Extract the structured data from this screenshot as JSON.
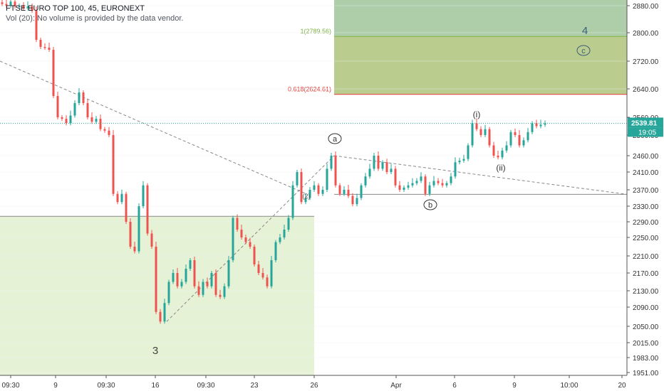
{
  "chart_data": {
    "type": "candlestick",
    "title": "FTSE EURO TOP 100, 45, EURONEXT",
    "subtitle": "Vol (20): No volume is provided by the data vendor.",
    "x_tick_labels": [
      "09:30",
      "9",
      "09:30",
      "16",
      "09:30",
      "23",
      "26",
      "Apr",
      "6",
      "9",
      "10:00",
      "20"
    ],
    "y_tick_labels": [
      "2880.00",
      "2800.00",
      "2720.00",
      "2640.00",
      "2560.00",
      "2500.00",
      "2460.00",
      "2410.00",
      "2370.00",
      "2330.00",
      "2290.00",
      "2250.00",
      "2210.00",
      "2170.00",
      "2130.00",
      "2090.00",
      "2050.00",
      "2015.00",
      "1983.00",
      "1951.00"
    ],
    "y_ticks": [
      2880,
      2800,
      2720,
      2640,
      2560,
      2500,
      2460,
      2410,
      2370,
      2330,
      2290,
      2250,
      2210,
      2170,
      2130,
      2090,
      2050,
      2015,
      1983,
      1951
    ],
    "ylim": [
      1940,
      2900
    ],
    "last_price": {
      "label": "2539.81",
      "value": 2539.81,
      "countdown": "19:05"
    },
    "fib_levels": [
      {
        "label": "1(2789.56)",
        "value": 2789.56,
        "color": "#7cb342"
      },
      {
        "label": "0.618(2624.61)",
        "value": 2624.61,
        "color": "#e53935"
      }
    ],
    "wave_labels": {
      "three": "3",
      "four": "4",
      "a": "a",
      "b": "b",
      "c": "c",
      "i": "(i)",
      "ii": "(ii)",
      "partial": "(2)"
    },
    "price_path": [
      [
        0,
        2890
      ],
      [
        6,
        2885
      ],
      [
        12,
        2880
      ],
      [
        18,
        2892
      ],
      [
        24,
        2878
      ],
      [
        30,
        2880
      ],
      [
        36,
        2872
      ],
      [
        42,
        2878
      ],
      [
        48,
        2865
      ],
      [
        54,
        2780
      ],
      [
        60,
        2760
      ],
      [
        66,
        2758
      ],
      [
        72,
        2752
      ],
      [
        78,
        2620
      ],
      [
        84,
        2560
      ],
      [
        90,
        2555
      ],
      [
        96,
        2540
      ],
      [
        102,
        2565
      ],
      [
        108,
        2600
      ],
      [
        114,
        2630
      ],
      [
        120,
        2600
      ],
      [
        126,
        2560
      ],
      [
        132,
        2545
      ],
      [
        138,
        2555
      ],
      [
        144,
        2520
      ],
      [
        150,
        2515
      ],
      [
        156,
        2500
      ],
      [
        162,
        2360
      ],
      [
        168,
        2340
      ],
      [
        174,
        2360
      ],
      [
        180,
        2290
      ],
      [
        186,
        2230
      ],
      [
        192,
        2220
      ],
      [
        198,
        2330
      ],
      [
        204,
        2380
      ],
      [
        210,
        2260
      ],
      [
        216,
        2230
      ],
      [
        222,
        2080
      ],
      [
        228,
        2060
      ],
      [
        234,
        2100
      ],
      [
        240,
        2150
      ],
      [
        246,
        2170
      ],
      [
        252,
        2140
      ],
      [
        258,
        2150
      ],
      [
        264,
        2180
      ],
      [
        270,
        2200
      ],
      [
        276,
        2140
      ],
      [
        282,
        2120
      ],
      [
        288,
        2150
      ],
      [
        294,
        2140
      ],
      [
        300,
        2170
      ],
      [
        306,
        2120
      ],
      [
        312,
        2115
      ],
      [
        318,
        2140
      ],
      [
        324,
        2200
      ],
      [
        330,
        2300
      ],
      [
        336,
        2270
      ],
      [
        342,
        2250
      ],
      [
        348,
        2240
      ],
      [
        354,
        2230
      ],
      [
        360,
        2190
      ],
      [
        366,
        2170
      ],
      [
        372,
        2160
      ],
      [
        378,
        2140
      ],
      [
        384,
        2200
      ],
      [
        390,
        2240
      ],
      [
        396,
        2250
      ],
      [
        402,
        2270
      ],
      [
        408,
        2300
      ],
      [
        414,
        2380
      ],
      [
        420,
        2410
      ],
      [
        426,
        2340
      ],
      [
        432,
        2350
      ],
      [
        438,
        2370
      ],
      [
        444,
        2380
      ],
      [
        450,
        2360
      ],
      [
        456,
        2370
      ],
      [
        462,
        2420
      ],
      [
        468,
        2460
      ],
      [
        474,
        2380
      ],
      [
        480,
        2360
      ],
      [
        486,
        2370
      ],
      [
        492,
        2355
      ],
      [
        498,
        2335
      ],
      [
        504,
        2350
      ],
      [
        510,
        2380
      ],
      [
        516,
        2400
      ],
      [
        522,
        2420
      ],
      [
        528,
        2460
      ],
      [
        534,
        2420
      ],
      [
        540,
        2440
      ],
      [
        546,
        2410
      ],
      [
        552,
        2420
      ],
      [
        558,
        2380
      ],
      [
        564,
        2370
      ],
      [
        570,
        2375
      ],
      [
        576,
        2380
      ],
      [
        582,
        2385
      ],
      [
        588,
        2390
      ],
      [
        594,
        2400
      ],
      [
        600,
        2360
      ],
      [
        606,
        2380
      ],
      [
        612,
        2390
      ],
      [
        618,
        2385
      ],
      [
        624,
        2380
      ],
      [
        630,
        2385
      ],
      [
        636,
        2400
      ],
      [
        642,
        2440
      ],
      [
        648,
        2445
      ],
      [
        654,
        2450
      ],
      [
        660,
        2480
      ],
      [
        666,
        2540
      ],
      [
        672,
        2520
      ],
      [
        678,
        2500
      ],
      [
        684,
        2520
      ],
      [
        690,
        2480
      ],
      [
        696,
        2460
      ],
      [
        702,
        2455
      ],
      [
        708,
        2470
      ],
      [
        714,
        2480
      ],
      [
        720,
        2510
      ],
      [
        726,
        2500
      ],
      [
        732,
        2480
      ],
      [
        738,
        2490
      ],
      [
        744,
        2510
      ],
      [
        750,
        2540
      ],
      [
        756,
        2530
      ],
      [
        762,
        2535
      ],
      [
        768,
        2540
      ]
    ],
    "grid": true
  }
}
